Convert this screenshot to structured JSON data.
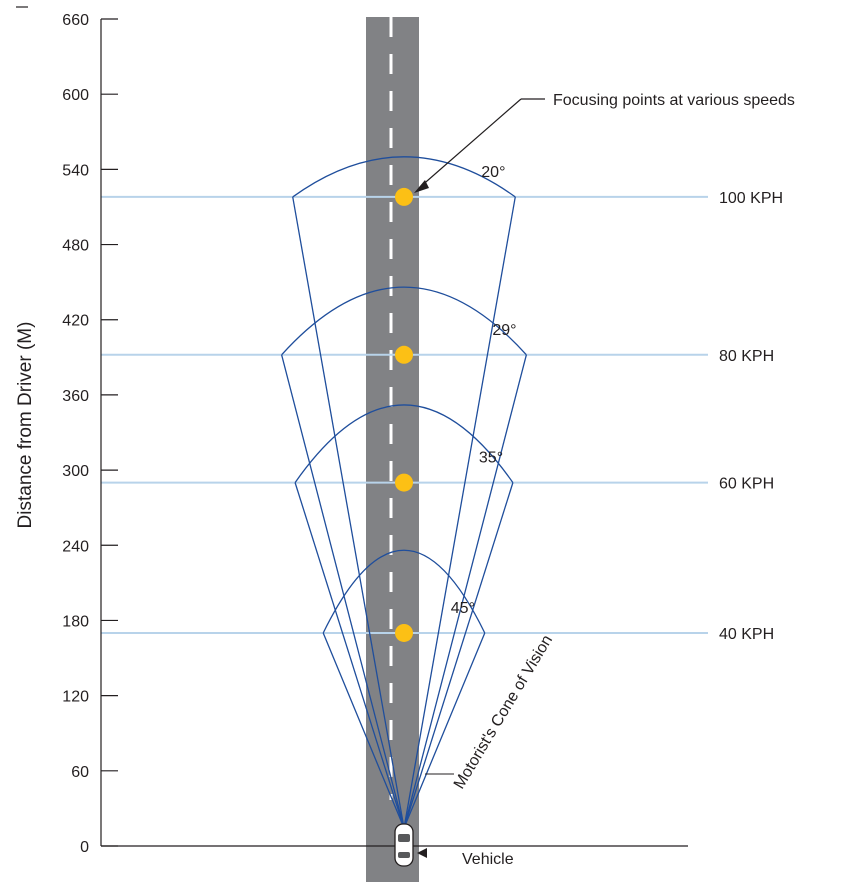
{
  "chart_data": {
    "type": "diagram",
    "ylabel": "Distance from Driver (M)",
    "ylim": [
      0,
      660
    ],
    "y_ticks": [
      0,
      60,
      120,
      180,
      240,
      300,
      360,
      420,
      480,
      540,
      600,
      660
    ],
    "cones": [
      {
        "speed_label": "100 KPH",
        "angle_label": "20°",
        "angle_deg": 20,
        "distance_m": 518,
        "arc_top_m": 550
      },
      {
        "speed_label": "80 KPH",
        "angle_label": "29°",
        "angle_deg": 29,
        "distance_m": 392,
        "arc_top_m": 446
      },
      {
        "speed_label": "60 KPH",
        "angle_label": "35°",
        "angle_deg": 35,
        "distance_m": 290,
        "arc_top_m": 352
      },
      {
        "speed_label": "40 KPH",
        "angle_label": "45°",
        "angle_deg": 45,
        "distance_m": 170,
        "arc_top_m": 236
      }
    ],
    "focus_points_m": [
      518,
      392,
      290,
      170
    ],
    "annotations": {
      "focus_points": "Focusing points at various speeds",
      "cone": "Motorist's Cone of Vision",
      "vehicle": "Vehicle"
    },
    "colors": {
      "road": "#818285",
      "lane_marking": "#ffffff",
      "cone_lines": "#1f4e9c",
      "speed_lines": "#b8d3ea",
      "focus_points": "#fcc015"
    }
  }
}
